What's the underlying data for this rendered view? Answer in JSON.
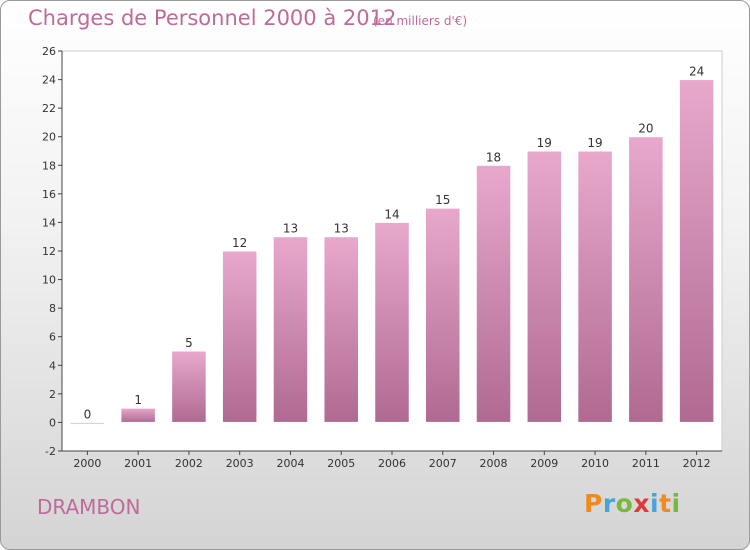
{
  "title": "Charges de Personnel 2000 à 2012",
  "subtitle": "(en milliers d'€)",
  "commune": "DRAMBON",
  "logo": {
    "text": "Proxiti",
    "letters": [
      {
        "ch": "P",
        "color": "#f08a1c"
      },
      {
        "ch": "r",
        "color": "#4aa3d8"
      },
      {
        "ch": "o",
        "color": "#7ab83c"
      },
      {
        "ch": "x",
        "color": "#e03a3a"
      },
      {
        "ch": "i",
        "color": "#4aa3d8"
      },
      {
        "ch": "t",
        "color": "#f08a1c"
      },
      {
        "ch": "i",
        "color": "#7ab83c"
      }
    ]
  },
  "colors": {
    "bar": "#d98fb8",
    "bar_dark": "#b86d98",
    "text": "#c06a9a"
  },
  "chart_data": {
    "type": "bar",
    "title": "Charges de Personnel 2000 à 2012",
    "subtitle": "(en milliers d'€)",
    "categories": [
      "2000",
      "2001",
      "2002",
      "2003",
      "2004",
      "2005",
      "2006",
      "2007",
      "2008",
      "2009",
      "2010",
      "2011",
      "2012"
    ],
    "values": [
      0,
      1,
      5,
      12,
      13,
      13,
      14,
      15,
      18,
      19,
      19,
      20,
      24
    ],
    "ylim": [
      -2,
      26
    ],
    "yticks": [
      -2,
      0,
      2,
      4,
      6,
      8,
      10,
      12,
      14,
      16,
      18,
      20,
      22,
      24,
      26
    ],
    "grid": false,
    "xlabel": "",
    "ylabel": ""
  }
}
